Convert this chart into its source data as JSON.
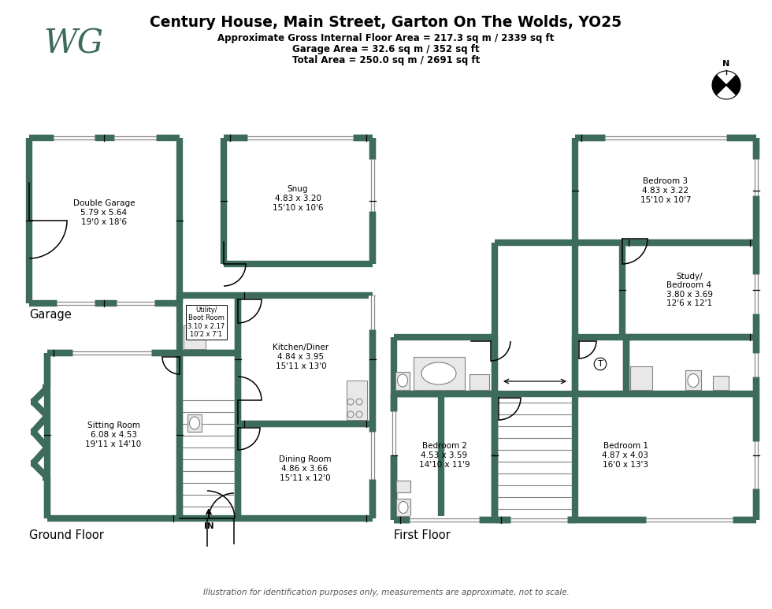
{
  "title_line1": "Century House, Main Street, Garton On The Wolds, YO25",
  "title_line2": "Approximate Gross Internal Floor Area = 217.3 sq m / 2339 sq ft",
  "title_line3": "Garage Area = 32.6 sq m / 352 sq ft",
  "title_line4": "Total Area = 250.0 sq m / 2691 sq ft",
  "footer": "Illustration for identification purposes only, measurements are approximate, not to scale.",
  "wall_color": "#3d6b5e",
  "bg_color": "#ffffff"
}
